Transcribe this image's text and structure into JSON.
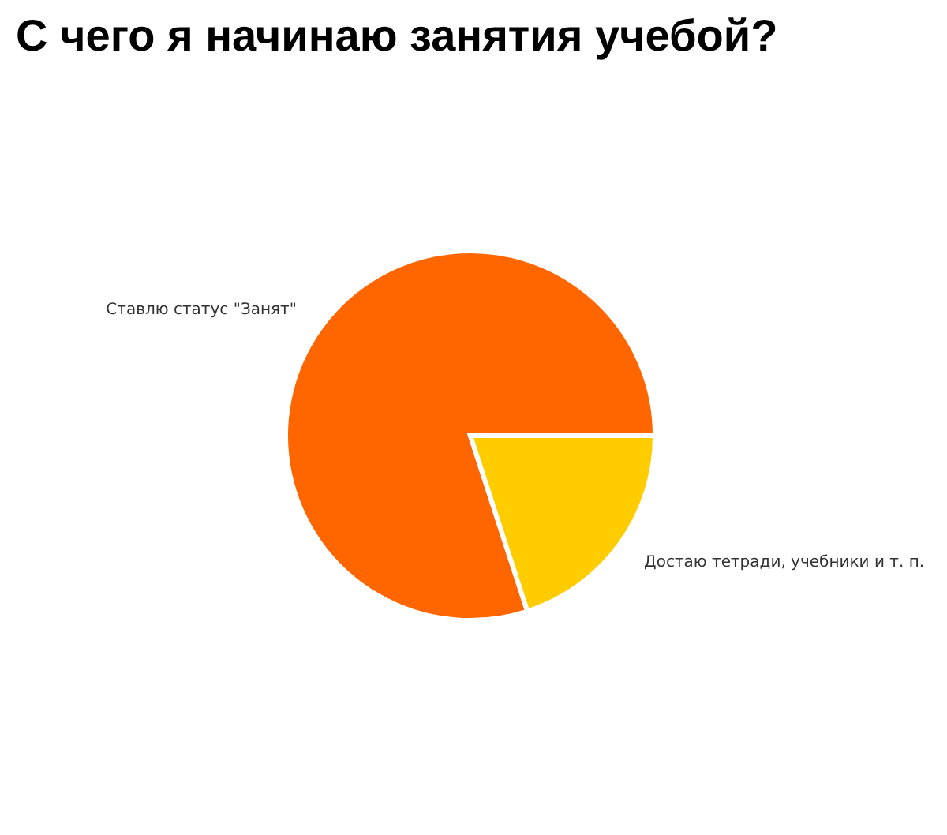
{
  "chart_data": {
    "type": "pie",
    "title": "С чего я начинаю занятия учебой?",
    "categories": [
      "Ставлю статус \"Занят\"",
      "Достаю тетради, учебники и т. п."
    ],
    "values": [
      80,
      20
    ],
    "colors": [
      "#ff6600",
      "#ffcc00"
    ]
  }
}
